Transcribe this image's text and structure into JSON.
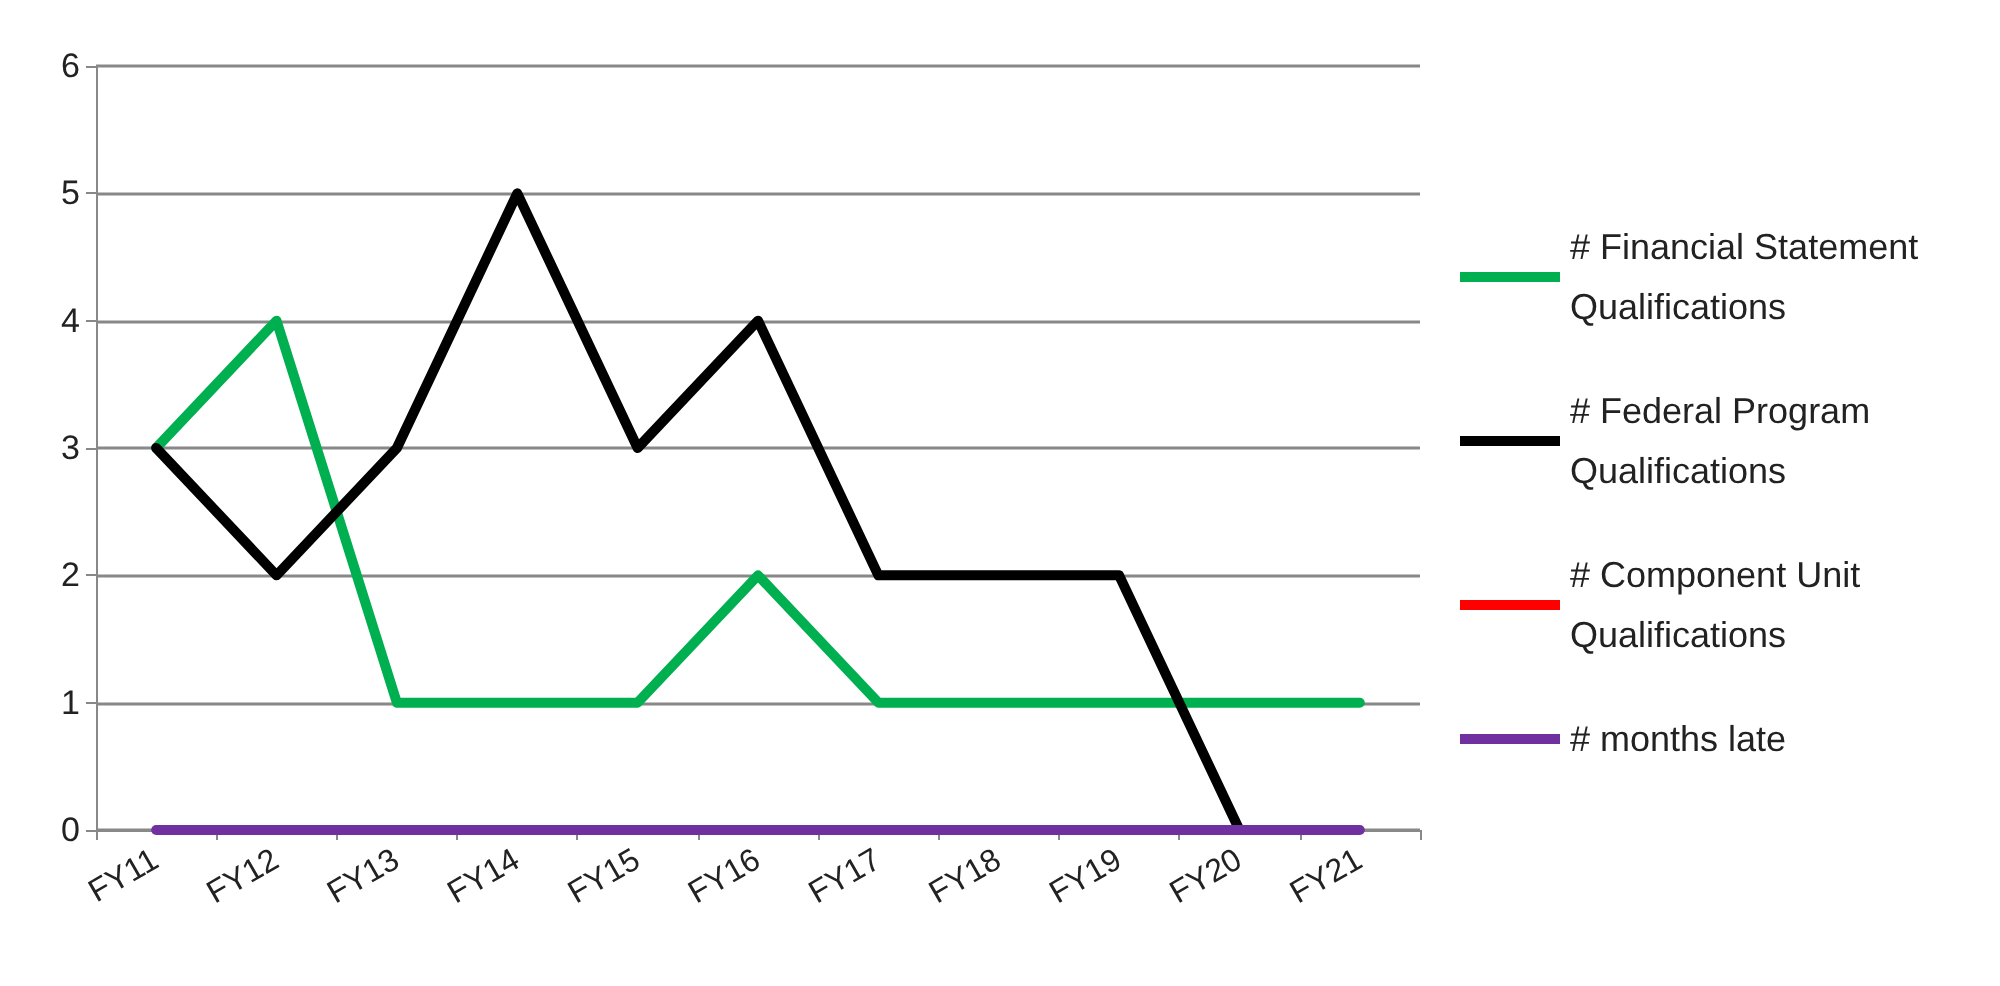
{
  "chart_data": {
    "type": "line",
    "categories": [
      "FY11",
      "FY12",
      "FY13",
      "FY14",
      "FY15",
      "FY16",
      "FY17",
      "FY18",
      "FY19",
      "FY20",
      "FY21"
    ],
    "series": [
      {
        "name": "# Financial Statement Qualifications",
        "color": "#00b050",
        "values": [
          3,
          4,
          1,
          1,
          1,
          2,
          1,
          1,
          1,
          1,
          1
        ]
      },
      {
        "name": "# Federal Program Qualifications",
        "color": "#000000",
        "values": [
          3,
          2,
          3,
          5,
          3,
          4,
          2,
          2,
          2,
          0,
          null
        ]
      },
      {
        "name": "# Component Unit Qualifications",
        "color": "#ff0000",
        "values": [
          null,
          null,
          null,
          null,
          null,
          null,
          null,
          null,
          null,
          null,
          null
        ]
      },
      {
        "name": "# months late",
        "color": "#7030a0",
        "values": [
          0,
          0,
          0,
          0,
          0,
          0,
          0,
          0,
          0,
          0,
          0
        ]
      }
    ],
    "ylim": [
      0,
      6
    ],
    "yticks": [
      0,
      1,
      2,
      3,
      4,
      5,
      6
    ],
    "grid": "y",
    "legend": "right",
    "marker": "none",
    "line_style": "solid"
  }
}
